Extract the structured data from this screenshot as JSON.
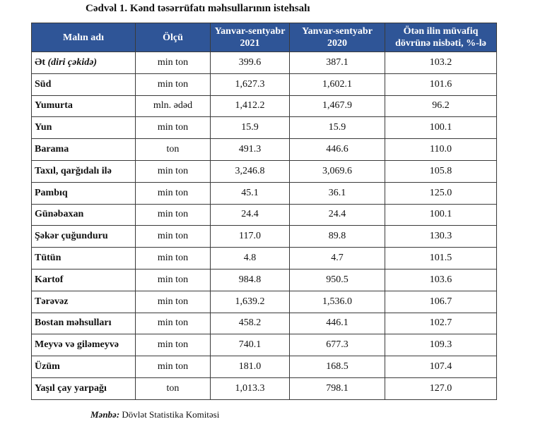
{
  "title": "Cədvəl 1. Kənd təsərrüfatı məhsullarının istehsalı",
  "table": {
    "headers": [
      {
        "line1": "Malın adı",
        "line2": ""
      },
      {
        "line1": "Ölçü",
        "line2": ""
      },
      {
        "line1": "Yanvar-sentyabr",
        "line2": "2021"
      },
      {
        "line1": "Yanvar-sentyabr",
        "line2": "2020"
      },
      {
        "line1": "Ötən ilin müvafiq",
        "line2": "dövrünə nisbəti, %-lə"
      }
    ],
    "rows": [
      {
        "name": "Ət",
        "name_italic": "(diri çəkidə)",
        "unit": "min ton",
        "v2021": "399.6",
        "v2020": "387.1",
        "ratio": "103.2"
      },
      {
        "name": "Süd",
        "name_italic": "",
        "unit": "min ton",
        "v2021": "1,627.3",
        "v2020": "1,602.1",
        "ratio": "101.6"
      },
      {
        "name": "Yumurta",
        "name_italic": "",
        "unit": "mln. ədəd",
        "v2021": "1,412.2",
        "v2020": "1,467.9",
        "ratio": "96.2"
      },
      {
        "name": "Yun",
        "name_italic": "",
        "unit": "min ton",
        "v2021": "15.9",
        "v2020": "15.9",
        "ratio": "100.1"
      },
      {
        "name": "Barama",
        "name_italic": "",
        "unit": "ton",
        "v2021": "491.3",
        "v2020": "446.6",
        "ratio": "110.0"
      },
      {
        "name": "Taxıl, qarğıdalı ilə",
        "name_italic": "",
        "unit": "min ton",
        "v2021": "3,246.8",
        "v2020": "3,069.6",
        "ratio": "105.8"
      },
      {
        "name": "Pambıq",
        "name_italic": "",
        "unit": "min ton",
        "v2021": "45.1",
        "v2020": "36.1",
        "ratio": "125.0"
      },
      {
        "name": "Günəbaxan",
        "name_italic": "",
        "unit": "min ton",
        "v2021": "24.4",
        "v2020": "24.4",
        "ratio": "100.1"
      },
      {
        "name": "Şəkər çuğunduru",
        "name_italic": "",
        "unit": "min ton",
        "v2021": "117.0",
        "v2020": "89.8",
        "ratio": "130.3"
      },
      {
        "name": "Tütün",
        "name_italic": "",
        "unit": "min ton",
        "v2021": "4.8",
        "v2020": "4.7",
        "ratio": "101.5"
      },
      {
        "name": "Kartof",
        "name_italic": "",
        "unit": "min ton",
        "v2021": "984.8",
        "v2020": "950.5",
        "ratio": "103.6"
      },
      {
        "name": "Tərəvəz",
        "name_italic": "",
        "unit": "min ton",
        "v2021": "1,639.2",
        "v2020": "1,536.0",
        "ratio": "106.7"
      },
      {
        "name": "Bostan məhsulları",
        "name_italic": "",
        "unit": "min ton",
        "v2021": "458.2",
        "v2020": "446.1",
        "ratio": "102.7"
      },
      {
        "name": "Meyvə və giləmeyvə",
        "name_italic": "",
        "unit": "min ton",
        "v2021": "740.1",
        "v2020": "677.3",
        "ratio": "109.3"
      },
      {
        "name": "Üzüm",
        "name_italic": "",
        "unit": "min ton",
        "v2021": "181.0",
        "v2020": "168.5",
        "ratio": "107.4"
      },
      {
        "name": "Yaşıl çay yarpağı",
        "name_italic": "",
        "unit": "ton",
        "v2021": "1,013.3",
        "v2020": "798.1",
        "ratio": "127.0"
      }
    ]
  },
  "source": {
    "label": "Mənbə:",
    "text": "Dövlət Statistika Komitəsi"
  },
  "colors": {
    "header_bg": "#2f5597",
    "header_text": "#ffffff",
    "border": "#3a3a3a"
  }
}
